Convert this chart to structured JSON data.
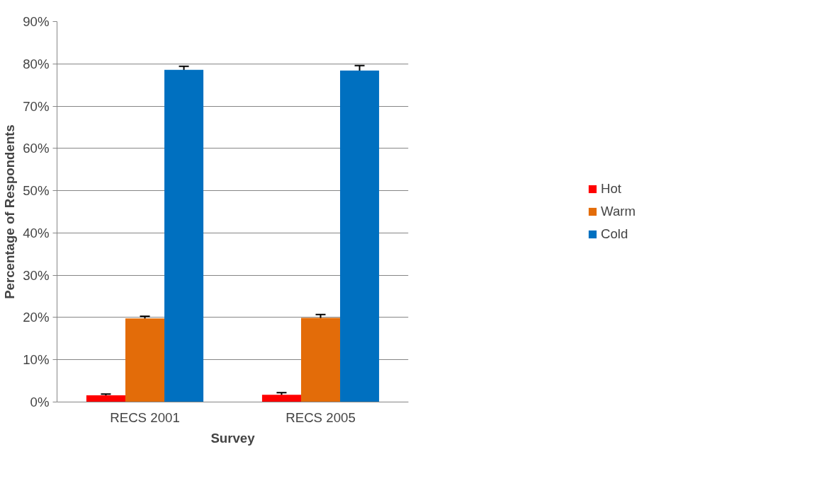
{
  "chart_data": {
    "type": "bar",
    "xlabel": "Survey",
    "ylabel": "Percentage of Respondents",
    "categories": [
      "RECS 2001",
      "RECS 2005"
    ],
    "series": [
      {
        "name": "Hot",
        "color": "#ff0000",
        "values": [
          1.6,
          1.7
        ],
        "errors": [
          0.3,
          0.5
        ]
      },
      {
        "name": "Warm",
        "color": "#e36c09",
        "values": [
          19.8,
          19.9
        ],
        "errors": [
          0.5,
          0.8
        ]
      },
      {
        "name": "Cold",
        "color": "#0070c0",
        "values": [
          78.6,
          78.4
        ],
        "errors": [
          0.8,
          1.2
        ]
      }
    ],
    "ylim": [
      0,
      90
    ],
    "yticks": [
      {
        "value": 0,
        "label": "0%"
      },
      {
        "value": 10,
        "label": "10%"
      },
      {
        "value": 20,
        "label": "20%"
      },
      {
        "value": 30,
        "label": "30%"
      },
      {
        "value": 40,
        "label": "40%"
      },
      {
        "value": 50,
        "label": "50%"
      },
      {
        "value": 60,
        "label": "60%"
      },
      {
        "value": 70,
        "label": "70%"
      },
      {
        "value": 80,
        "label": "80%"
      },
      {
        "value": 90,
        "label": "90%"
      }
    ],
    "grid": "y",
    "legend": "right"
  }
}
